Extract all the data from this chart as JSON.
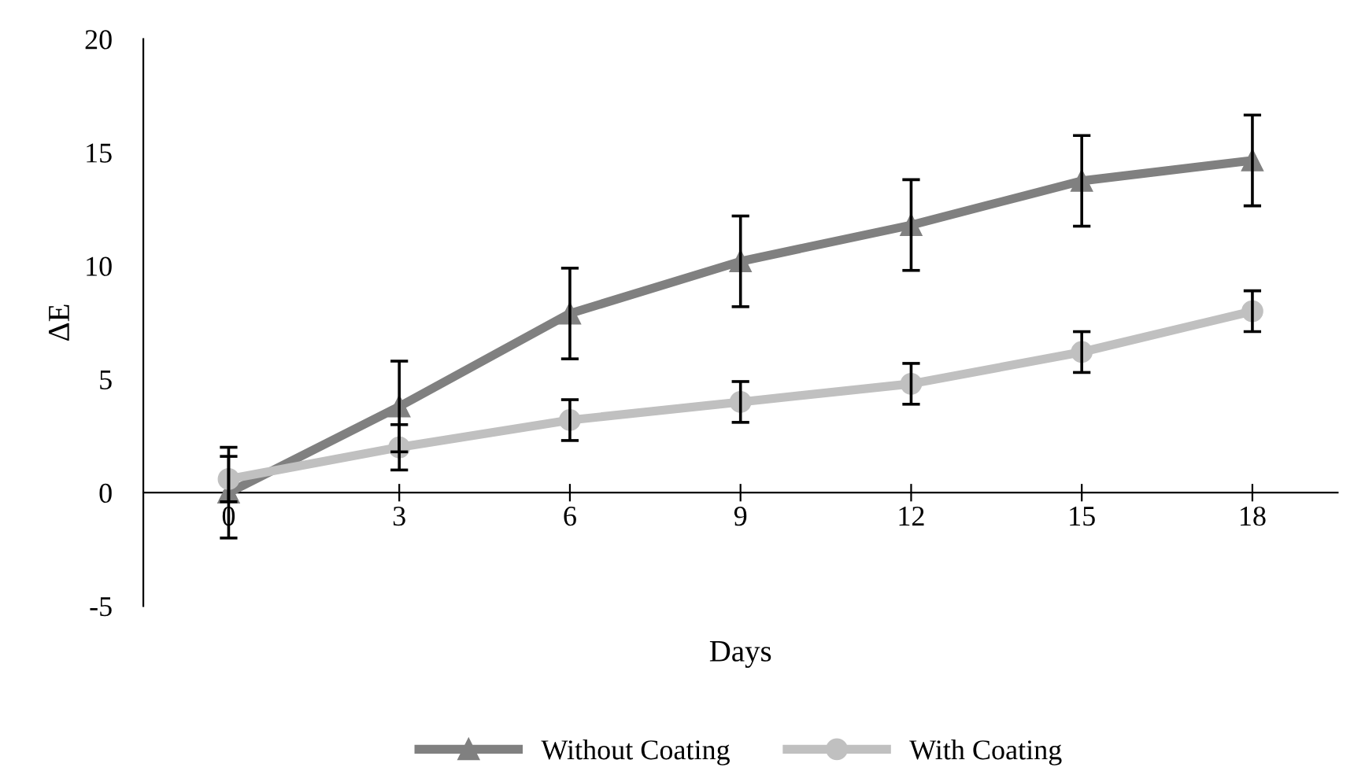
{
  "chart_data": {
    "type": "line",
    "xlabel": "Days",
    "ylabel": "ΔE",
    "x": [
      0,
      3,
      6,
      9,
      12,
      15,
      18
    ],
    "series": [
      {
        "name": "Without Coating",
        "color": "#808080",
        "marker": "triangle",
        "values": [
          0,
          3.8,
          7.9,
          10.2,
          11.8,
          13.75,
          14.65
        ],
        "errors": [
          2,
          2,
          2,
          2,
          2,
          2,
          2
        ]
      },
      {
        "name": "With Coating",
        "color": "#c0c0c0",
        "marker": "circle",
        "values": [
          0.6,
          2.0,
          3.2,
          4.0,
          4.8,
          6.2,
          8.0
        ],
        "errors": [
          1,
          1,
          0.9,
          0.9,
          0.9,
          0.9,
          0.9
        ]
      }
    ],
    "xlim": [
      -1.5,
      19.5
    ],
    "xticks": [
      0,
      3,
      6,
      9,
      12,
      15,
      18
    ],
    "ylim": [
      -5,
      20
    ],
    "yticks": [
      -5,
      0,
      5,
      10,
      15,
      20
    ],
    "grid": false,
    "legend": "bottom",
    "line_style": "solid"
  }
}
